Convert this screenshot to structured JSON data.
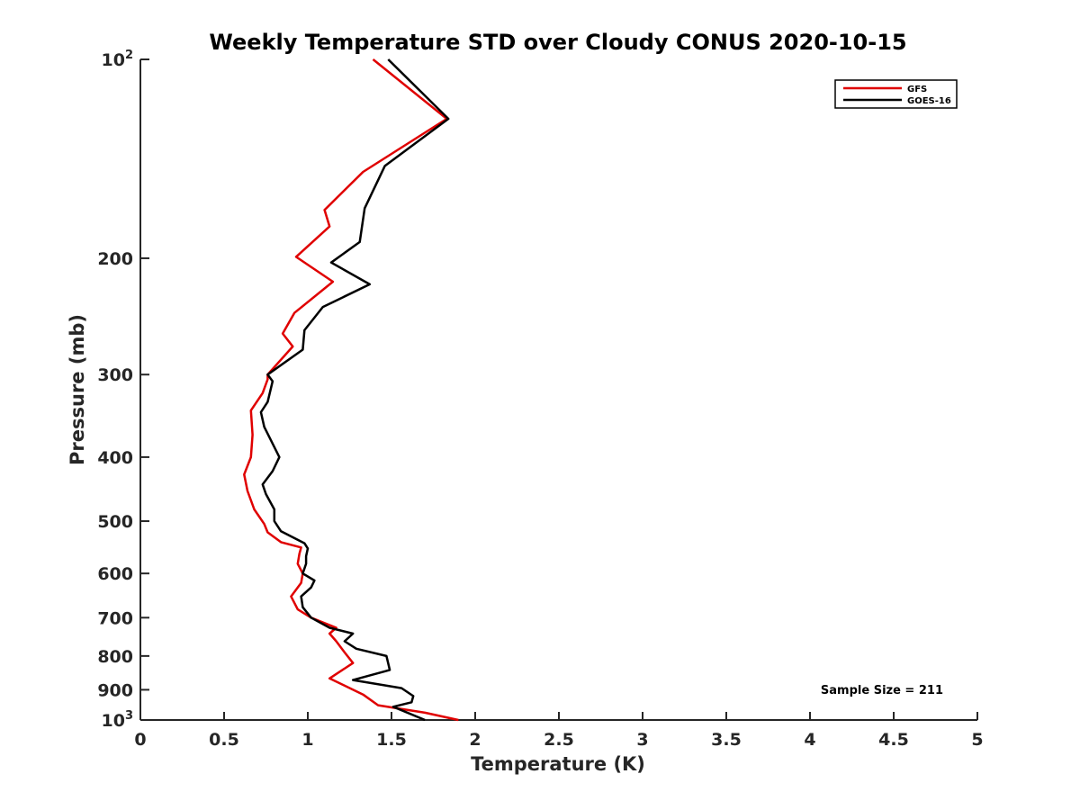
{
  "chart_data": {
    "type": "line",
    "title": "Weekly Temperature STD over Cloudy CONUS 2020-10-15",
    "xlabel": "Temperature (K)",
    "ylabel": "Pressure (mb)",
    "xlim": [
      0,
      5
    ],
    "ylim": [
      100,
      1000
    ],
    "yscale": "log",
    "y_reversed": true,
    "grid": false,
    "legend_position": "top-right",
    "x_ticks": [
      0,
      0.5,
      1,
      1.5,
      2,
      2.5,
      3,
      3.5,
      4,
      4.5,
      5
    ],
    "x_tick_labels": [
      "0",
      "0.5",
      "1",
      "1.5",
      "2",
      "2.5",
      "3",
      "3.5",
      "4",
      "4.5",
      "5"
    ],
    "y_ticks": [
      100,
      200,
      300,
      400,
      500,
      600,
      700,
      800,
      900,
      1000
    ],
    "y_tick_labels": [
      {
        "base": "10",
        "sup": "2"
      },
      {
        "base": "200",
        "sup": ""
      },
      {
        "base": "300",
        "sup": ""
      },
      {
        "base": "400",
        "sup": ""
      },
      {
        "base": "500",
        "sup": ""
      },
      {
        "base": "600",
        "sup": ""
      },
      {
        "base": "700",
        "sup": ""
      },
      {
        "base": "800",
        "sup": ""
      },
      {
        "base": "900",
        "sup": ""
      },
      {
        "base": "10",
        "sup": "3"
      }
    ],
    "annotation": "Sample Size = 211",
    "series": [
      {
        "name": "GFS",
        "color": "#e00000",
        "x": [
          1.39,
          1.83,
          1.33,
          1.1,
          1.13,
          0.93,
          1.15,
          0.92,
          0.85,
          0.91,
          0.76,
          0.76,
          0.73,
          0.66,
          0.67,
          0.66,
          0.62,
          0.64,
          0.68,
          0.74,
          0.76,
          0.84,
          0.96,
          0.95,
          0.94,
          0.97,
          0.96,
          0.9,
          0.94,
          1.02,
          1.17,
          1.13,
          1.17,
          1.22,
          1.27,
          1.13,
          1.33,
          1.42,
          1.7,
          1.9
        ],
        "y": [
          100,
          123,
          148,
          169,
          179,
          199,
          217,
          242,
          260,
          272,
          300,
          305,
          320,
          340,
          370,
          400,
          425,
          450,
          480,
          505,
          520,
          538,
          548,
          560,
          580,
          600,
          620,
          650,
          680,
          700,
          725,
          740,
          760,
          790,
          820,
          865,
          915,
          950,
          975,
          1000
        ]
      },
      {
        "name": "GOES-16",
        "color": "#000000",
        "x": [
          1.48,
          1.84,
          1.46,
          1.34,
          1.31,
          1.14,
          1.37,
          1.09,
          0.98,
          0.97,
          0.76,
          0.79,
          0.76,
          0.72,
          0.74,
          0.83,
          0.79,
          0.73,
          0.75,
          0.8,
          0.8,
          0.84,
          0.98,
          1.0,
          0.99,
          0.99,
          0.97,
          1.04,
          1.02,
          0.96,
          0.97,
          1.02,
          1.13,
          1.27,
          1.22,
          1.29,
          1.47,
          1.49,
          1.27,
          1.56,
          1.63,
          1.62,
          1.51,
          1.7
        ],
        "y": [
          100,
          123,
          145,
          168,
          189,
          203,
          219,
          237,
          257,
          275,
          300,
          307,
          330,
          342,
          360,
          400,
          420,
          440,
          455,
          480,
          500,
          518,
          540,
          550,
          565,
          580,
          600,
          615,
          630,
          650,
          675,
          700,
          725,
          740,
          760,
          780,
          800,
          840,
          870,
          895,
          920,
          940,
          955,
          1000
        ]
      }
    ]
  }
}
